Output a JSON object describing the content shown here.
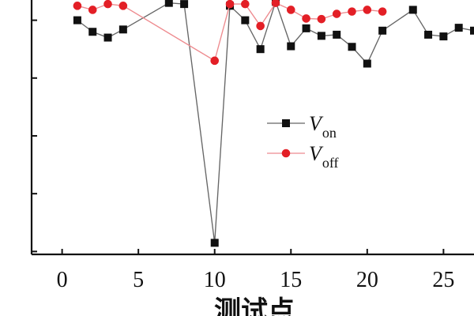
{
  "chart_data": {
    "type": "line",
    "title": "",
    "xlabel": "测试点",
    "ylabel": "",
    "x_ticks": [
      "0",
      "5",
      "10",
      "15",
      "20",
      "25"
    ],
    "y_ticks": [
      "",
      "",
      "",
      "",
      ""
    ],
    "grid": false,
    "legend_position": "center-right",
    "xlim": [
      -2,
      27
    ],
    "ylim": [
      -0.05,
      4.35
    ],
    "series": [
      {
        "name": "V_on",
        "legend_main": "V",
        "legend_sub": "on",
        "color": "#111111",
        "marker": "square",
        "x": [
          1,
          2,
          3,
          4,
          7,
          8,
          10,
          11,
          12,
          13,
          14,
          15,
          16,
          17,
          18,
          19,
          20,
          21,
          23,
          24,
          25,
          26,
          27
        ],
        "y": [
          4.0,
          3.8,
          3.7,
          3.84,
          4.3,
          4.28,
          0.15,
          4.25,
          4.0,
          3.5,
          4.32,
          3.55,
          3.86,
          3.73,
          3.75,
          3.54,
          3.25,
          3.82,
          4.18,
          3.75,
          3.72,
          3.87,
          3.82
        ]
      },
      {
        "name": "V_off",
        "legend_main": "V",
        "legend_sub": "off",
        "color": "#e31f26",
        "marker": "circle",
        "x": [
          1,
          2,
          3,
          4,
          10,
          11,
          12,
          13,
          14,
          15,
          16,
          17,
          18,
          19,
          20,
          21
        ],
        "y": [
          4.25,
          4.18,
          4.28,
          4.25,
          3.3,
          4.28,
          4.28,
          3.9,
          4.3,
          4.18,
          4.03,
          4.02,
          4.11,
          4.15,
          4.18,
          4.15
        ]
      }
    ]
  }
}
